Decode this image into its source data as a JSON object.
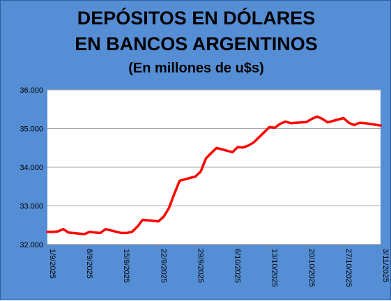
{
  "title_line1": "DEPÓSITOS EN DÓLARES",
  "title_line2": "EN BANCOS ARGENTINOS",
  "subtitle": "(En millones de u$s)",
  "colors": {
    "background": "#558ed5",
    "plot_area": "#ffffff",
    "line": "#ff0000",
    "grid": "#a6a6a6"
  },
  "chart_data": {
    "type": "line",
    "title": "DEPÓSITOS EN DÓLARES EN BANCOS ARGENTINOS",
    "subtitle": "(En millones de u$s)",
    "xlabel": "",
    "ylabel": "",
    "x_range": [
      "2025-09-01",
      "2025-11-03"
    ],
    "x_tick_labels": [
      "1/9/2025",
      "8/9/2025",
      "15/9/2025",
      "22/9/2025",
      "29/9/2025",
      "6/10/2025",
      "13/10/2025",
      "20/10/2025",
      "27/10/2025",
      "3/11/2025"
    ],
    "ylim": [
      32000,
      36000
    ],
    "y_ticks": [
      32000,
      33000,
      34000,
      35000,
      36000
    ],
    "y_tick_labels": [
      "32.000",
      "33.000",
      "34.000",
      "35.000",
      "36.000"
    ],
    "grid": true,
    "legend": "none",
    "series": [
      {
        "x": [
          "2025-09-01",
          "2025-09-02",
          "2025-09-03",
          "2025-09-04",
          "2025-09-05",
          "2025-09-08",
          "2025-09-09",
          "2025-09-10",
          "2025-09-11",
          "2025-09-12",
          "2025-09-15",
          "2025-09-16",
          "2025-09-17",
          "2025-09-18",
          "2025-09-19",
          "2025-09-22",
          "2025-09-23",
          "2025-09-24",
          "2025-09-25",
          "2025-09-26",
          "2025-09-29",
          "2025-09-30",
          "2025-10-01",
          "2025-10-02",
          "2025-10-03",
          "2025-10-06",
          "2025-10-07",
          "2025-10-08",
          "2025-10-09",
          "2025-10-10",
          "2025-10-13",
          "2025-10-14",
          "2025-10-15",
          "2025-10-16",
          "2025-10-17",
          "2025-10-20",
          "2025-10-21",
          "2025-10-22",
          "2025-10-23",
          "2025-10-24",
          "2025-10-27",
          "2025-10-28",
          "2025-10-29",
          "2025-10-30",
          "2025-10-31",
          "2025-11-03"
        ],
        "values": [
          32330,
          32330,
          32340,
          32400,
          32310,
          32270,
          32330,
          32310,
          32300,
          32400,
          32300,
          32300,
          32330,
          32460,
          32640,
          32600,
          32720,
          32950,
          33310,
          33650,
          33760,
          33890,
          34230,
          34370,
          34500,
          34390,
          34520,
          34510,
          34560,
          34640,
          35040,
          35020,
          35120,
          35180,
          35140,
          35170,
          35250,
          35310,
          35250,
          35160,
          35270,
          35150,
          35090,
          35150,
          35140,
          35080
        ]
      }
    ]
  }
}
